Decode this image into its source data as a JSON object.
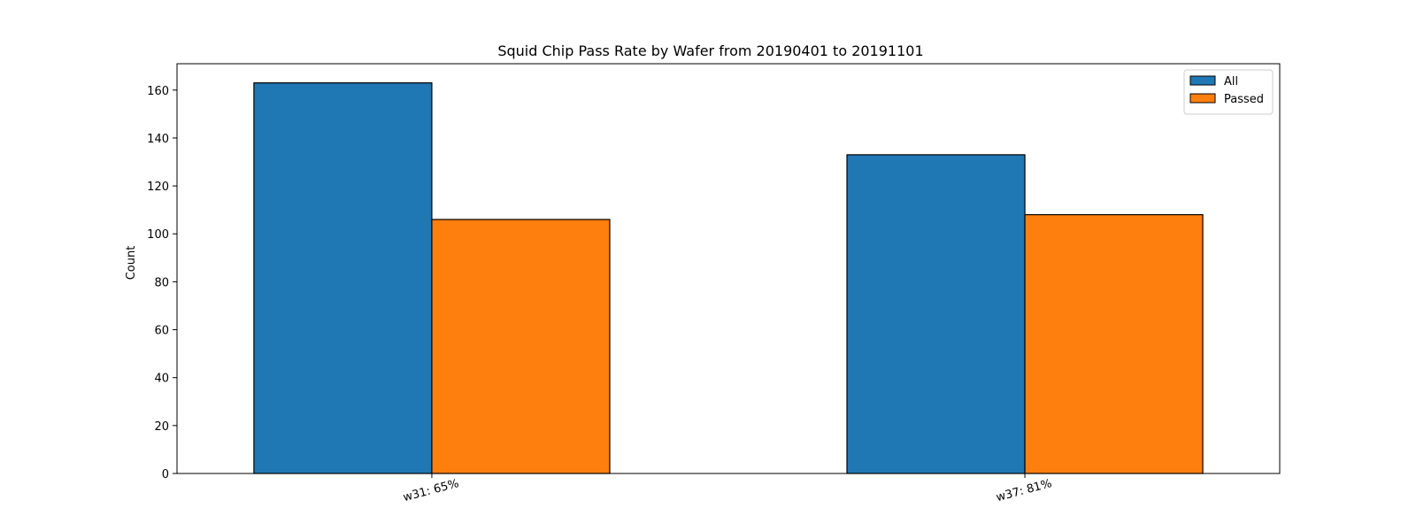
{
  "chart_data": {
    "type": "bar",
    "title": "Squid Chip Pass Rate by Wafer from 20190401 to 20191101",
    "xlabel": "",
    "ylabel": "Count",
    "categories": [
      "w31: 65%",
      "w37: 81%"
    ],
    "series": [
      {
        "name": "All",
        "values": [
          163,
          133
        ],
        "color": "#1f77b4"
      },
      {
        "name": "Passed",
        "values": [
          106,
          108
        ],
        "color": "#ff7f0e"
      }
    ],
    "ylim": [
      0,
      171
    ],
    "yticks": [
      0,
      20,
      40,
      60,
      80,
      100,
      120,
      140,
      160
    ],
    "grid": false,
    "legend_position": "top-right"
  }
}
